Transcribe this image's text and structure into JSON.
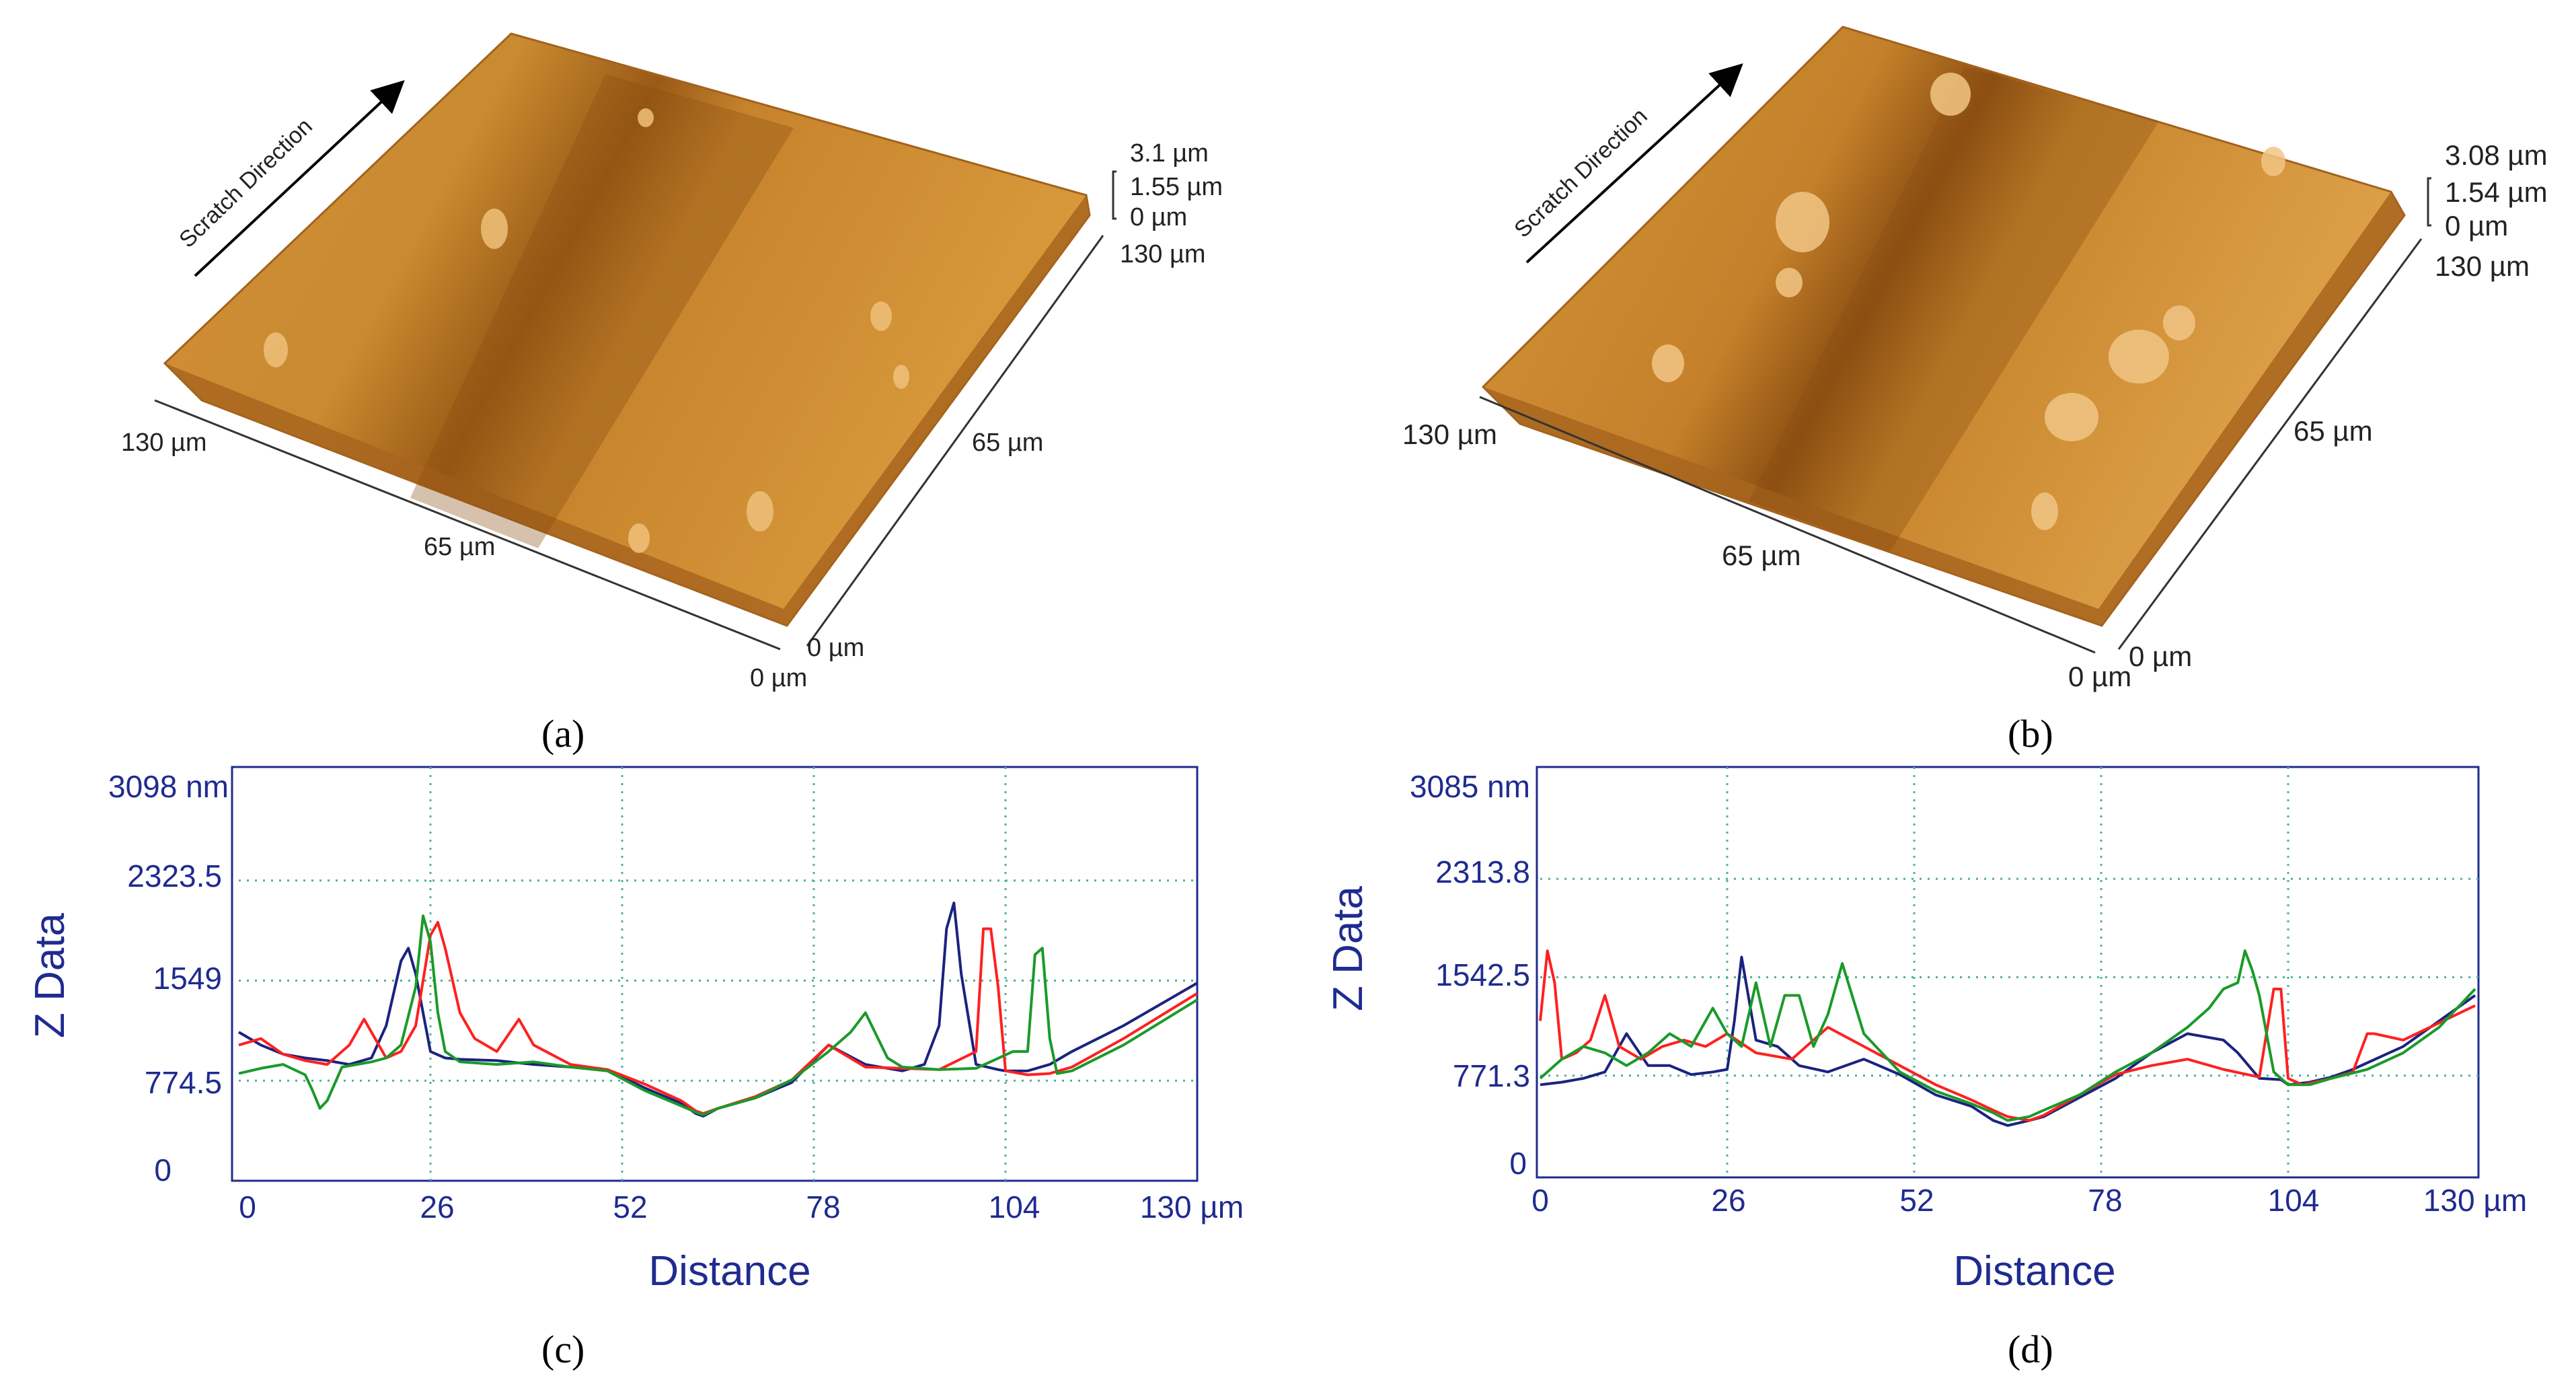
{
  "panel_a": {
    "caption": "(a)",
    "arrow_label": "Scratch Direction",
    "z_ticks": [
      "3.1 µm",
      "1.55 µm",
      "0 µm"
    ],
    "y_max": "130 µm",
    "y_mid": "65 µm",
    "y_zero": "0 µm",
    "x_max": "130 µm",
    "x_mid": "65 µm",
    "x_zero": "0 µm"
  },
  "panel_b": {
    "caption": "(b)",
    "arrow_label": "Scratch Direction",
    "z_ticks": [
      "3.08 µm",
      "1.54 µm",
      "0 µm"
    ],
    "y_max": "130 µm",
    "y_mid": "65 µm",
    "y_zero": "0 µm",
    "x_max": "130 µm",
    "x_mid": "65 µm",
    "x_zero": "0 µm"
  },
  "colors": {
    "surface_light": "#d99a3c",
    "surface_mid": "#c27a22",
    "surface_dark": "#8a4d10",
    "axis_blue": "#1f2b8f",
    "grid": "#4fb0a0",
    "series_blue": "#1a237e",
    "series_red": "#ff2020",
    "series_green": "#1a9a2a"
  },
  "chart_data": [
    {
      "type": "line",
      "caption": "(c)",
      "xlabel": "Distance",
      "ylabel": "Z Data",
      "x_ticks": [
        "0",
        "26",
        "52",
        "78",
        "104",
        "130 µm"
      ],
      "y_ticks": [
        "3098 nm",
        "2323.5",
        "1549",
        "774.5",
        "0"
      ],
      "xlim": [
        0,
        130
      ],
      "ylim": [
        0,
        3098
      ],
      "grid": true,
      "series": [
        {
          "color": "blue",
          "x": [
            0,
            3,
            6,
            9,
            12,
            15,
            18,
            20,
            22,
            23,
            24,
            25,
            26,
            28,
            30,
            35,
            40,
            45,
            50,
            55,
            60,
            62,
            63,
            65,
            70,
            75,
            80,
            85,
            90,
            93,
            95,
            96,
            97,
            98,
            100,
            103,
            104,
            107,
            110,
            113,
            120,
            130
          ],
          "y": [
            1150,
            1050,
            980,
            950,
            930,
            900,
            950,
            1200,
            1700,
            1800,
            1600,
            1300,
            1000,
            950,
            940,
            930,
            900,
            880,
            860,
            720,
            600,
            520,
            500,
            560,
            640,
            760,
            1050,
            900,
            850,
            900,
            1200,
            1950,
            2150,
            1600,
            900,
            860,
            850,
            850,
            900,
            1000,
            1200,
            1530
          ]
        },
        {
          "color": "red",
          "x": [
            0,
            3,
            6,
            9,
            12,
            15,
            17,
            20,
            22,
            24,
            26,
            27,
            28,
            30,
            32,
            35,
            38,
            40,
            45,
            50,
            55,
            60,
            62,
            63,
            65,
            70,
            75,
            80,
            85,
            90,
            95,
            100,
            101,
            102,
            103,
            104,
            107,
            110,
            113,
            120,
            130
          ],
          "y": [
            1050,
            1100,
            980,
            930,
            900,
            1050,
            1250,
            950,
            1000,
            1200,
            1900,
            2000,
            1800,
            1300,
            1100,
            1000,
            1250,
            1050,
            900,
            860,
            750,
            620,
            540,
            520,
            560,
            650,
            780,
            1050,
            880,
            870,
            860,
            1000,
            1950,
            1950,
            1500,
            850,
            820,
            830,
            880,
            1100,
            1450
          ]
        },
        {
          "color": "green",
          "x": [
            0,
            3,
            6,
            9,
            10,
            11,
            12,
            14,
            16,
            18,
            20,
            22,
            24,
            25,
            26,
            27,
            28,
            30,
            35,
            40,
            45,
            50,
            55,
            60,
            62,
            63,
            65,
            70,
            75,
            80,
            83,
            85,
            88,
            90,
            95,
            100,
            105,
            107,
            108,
            109,
            110,
            111,
            113,
            120,
            130
          ],
          "y": [
            830,
            870,
            900,
            820,
            700,
            560,
            620,
            880,
            900,
            920,
            950,
            1050,
            1500,
            2050,
            1850,
            1300,
            1000,
            920,
            900,
            920,
            880,
            850,
            700,
            580,
            530,
            510,
            560,
            640,
            780,
            1000,
            1150,
            1300,
            950,
            880,
            860,
            870,
            1000,
            1000,
            1750,
            1800,
            1100,
            830,
            850,
            1050,
            1400
          ]
        }
      ]
    },
    {
      "type": "line",
      "caption": "(d)",
      "xlabel": "Distance",
      "ylabel": "Z Data",
      "x_ticks": [
        "0",
        "26",
        "52",
        "78",
        "104",
        "130 µm"
      ],
      "y_ticks": [
        "3085 nm",
        "2313.8",
        "1542.5",
        "771.3",
        "0"
      ],
      "xlim": [
        0,
        130
      ],
      "ylim": [
        0,
        3085
      ],
      "grid": true,
      "series": [
        {
          "color": "blue",
          "x": [
            0,
            3,
            6,
            9,
            12,
            15,
            18,
            21,
            24,
            26,
            27,
            28,
            30,
            33,
            36,
            40,
            45,
            50,
            55,
            60,
            63,
            65,
            68,
            70,
            75,
            80,
            85,
            90,
            95,
            97,
            100,
            103,
            104,
            107,
            110,
            113,
            120,
            130
          ],
          "y": [
            700,
            720,
            750,
            800,
            1100,
            850,
            850,
            780,
            800,
            820,
            1200,
            1700,
            1050,
            1000,
            850,
            800,
            900,
            780,
            620,
            530,
            420,
            380,
            420,
            450,
            600,
            750,
            950,
            1100,
            1050,
            950,
            750,
            740,
            700,
            720,
            760,
            820,
            1000,
            1400
          ]
        },
        {
          "color": "red",
          "x": [
            0,
            1,
            2,
            3,
            5,
            7,
            9,
            11,
            14,
            17,
            20,
            23,
            26,
            30,
            35,
            40,
            45,
            50,
            55,
            60,
            63,
            65,
            68,
            70,
            75,
            80,
            85,
            90,
            95,
            100,
            102,
            103,
            104,
            106,
            110,
            113,
            115,
            116,
            120,
            130
          ],
          "y": [
            1200,
            1750,
            1500,
            900,
            950,
            1050,
            1400,
            1000,
            900,
            1000,
            1050,
            1000,
            1100,
            950,
            900,
            1150,
            1000,
            850,
            700,
            580,
            500,
            450,
            420,
            460,
            620,
            780,
            850,
            900,
            820,
            760,
            1450,
            1450,
            750,
            700,
            750,
            800,
            1100,
            1100,
            1050,
            1320
          ]
        },
        {
          "color": "green",
          "x": [
            0,
            3,
            6,
            9,
            12,
            15,
            18,
            21,
            24,
            26,
            28,
            30,
            32,
            34,
            36,
            38,
            40,
            42,
            45,
            50,
            55,
            60,
            63,
            65,
            68,
            70,
            75,
            80,
            85,
            90,
            93,
            95,
            97,
            98,
            99,
            100,
            102,
            104,
            107,
            110,
            115,
            120,
            125,
            130
          ],
          "y": [
            750,
            900,
            1000,
            950,
            850,
            950,
            1100,
            1000,
            1300,
            1100,
            1000,
            1500,
            1000,
            1400,
            1400,
            1000,
            1250,
            1650,
            1100,
            800,
            650,
            550,
            480,
            420,
            450,
            500,
            620,
            800,
            950,
            1150,
            1300,
            1450,
            1500,
            1750,
            1600,
            1400,
            800,
            700,
            700,
            750,
            820,
            950,
            1150,
            1450
          ]
        }
      ]
    }
  ]
}
